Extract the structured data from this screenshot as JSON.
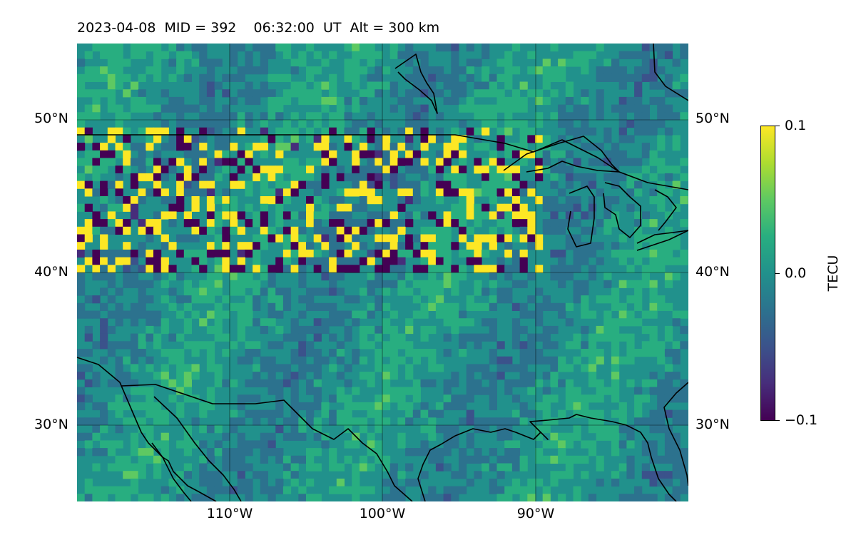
{
  "title": "2023-04-08  MID = 392    06:32:00  UT  Alt = 300 km",
  "map": {
    "lon_range": [
      -120,
      -80
    ],
    "lat_range": [
      25,
      55
    ],
    "lat_labels": [
      "50°N",
      "40°N",
      "30°N"
    ],
    "lon_labels": [
      "110°W",
      "100°W",
      "90°W"
    ],
    "grid": true,
    "colormap": "viridis",
    "colors": {
      "low": "#440154",
      "mid": "#21918c",
      "high": "#fde725",
      "coastline": "#000000"
    },
    "features": [
      "coastlines",
      "US-Canada border",
      "Great Lakes",
      "Gulf of Mexico"
    ]
  },
  "colorbar": {
    "label": "TECU",
    "ticks": [
      "0.1",
      "0.0",
      "−0.1"
    ],
    "min": -0.1,
    "max": 0.1
  }
}
